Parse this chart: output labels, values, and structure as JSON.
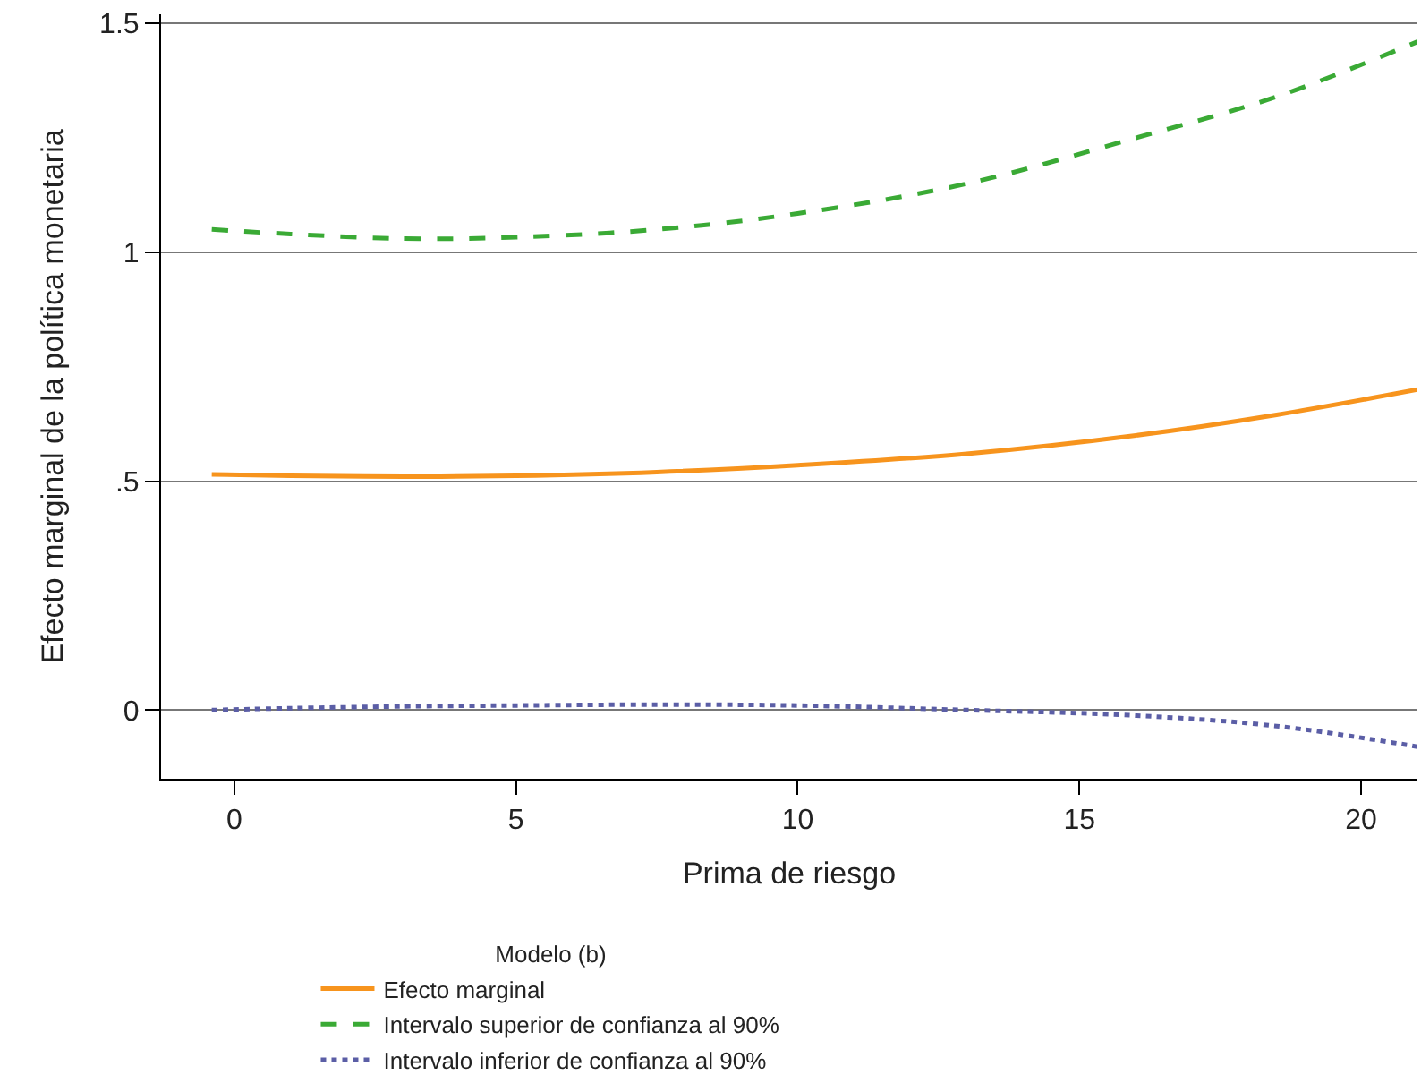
{
  "chart_data": {
    "type": "line",
    "xlabel": "Prima de riesgo",
    "ylabel": "Efecto marginal de la política monetaria",
    "legend_title": "Modelo (b)",
    "x": [
      -0.4,
      1,
      3,
      5,
      7.5,
      10,
      13,
      16,
      18.5,
      21
    ],
    "series": [
      {
        "name": "Efecto marginal",
        "color": "#f7941d",
        "line_style": "solid",
        "values": [
          0.515,
          0.512,
          0.51,
          0.512,
          0.52,
          0.535,
          0.56,
          0.6,
          0.645,
          0.7
        ]
      },
      {
        "name": "Intervalo superior de confianza al 90%",
        "color": "#3aaa35",
        "line_style": "dashed",
        "values": [
          1.05,
          1.04,
          1.03,
          1.033,
          1.05,
          1.085,
          1.15,
          1.25,
          1.34,
          1.46
        ]
      },
      {
        "name": "Intervalo inferior de confianza al 90%",
        "color": "#5b5ea6",
        "line_style": "dotted",
        "values": [
          0,
          0.004,
          0.008,
          0.01,
          0.012,
          0.01,
          0.0,
          -0.012,
          -0.035,
          -0.08
        ]
      }
    ],
    "xlim": [
      -1.3,
      21
    ],
    "xticks": [
      0,
      5,
      10,
      15,
      20
    ],
    "ylim": [
      -0.15,
      1.52
    ],
    "yticks": [
      0,
      {
        "value": 0.5,
        "label": ".5"
      },
      1,
      1.5
    ],
    "grid": "y",
    "legend": "bottom",
    "marker": "none"
  }
}
